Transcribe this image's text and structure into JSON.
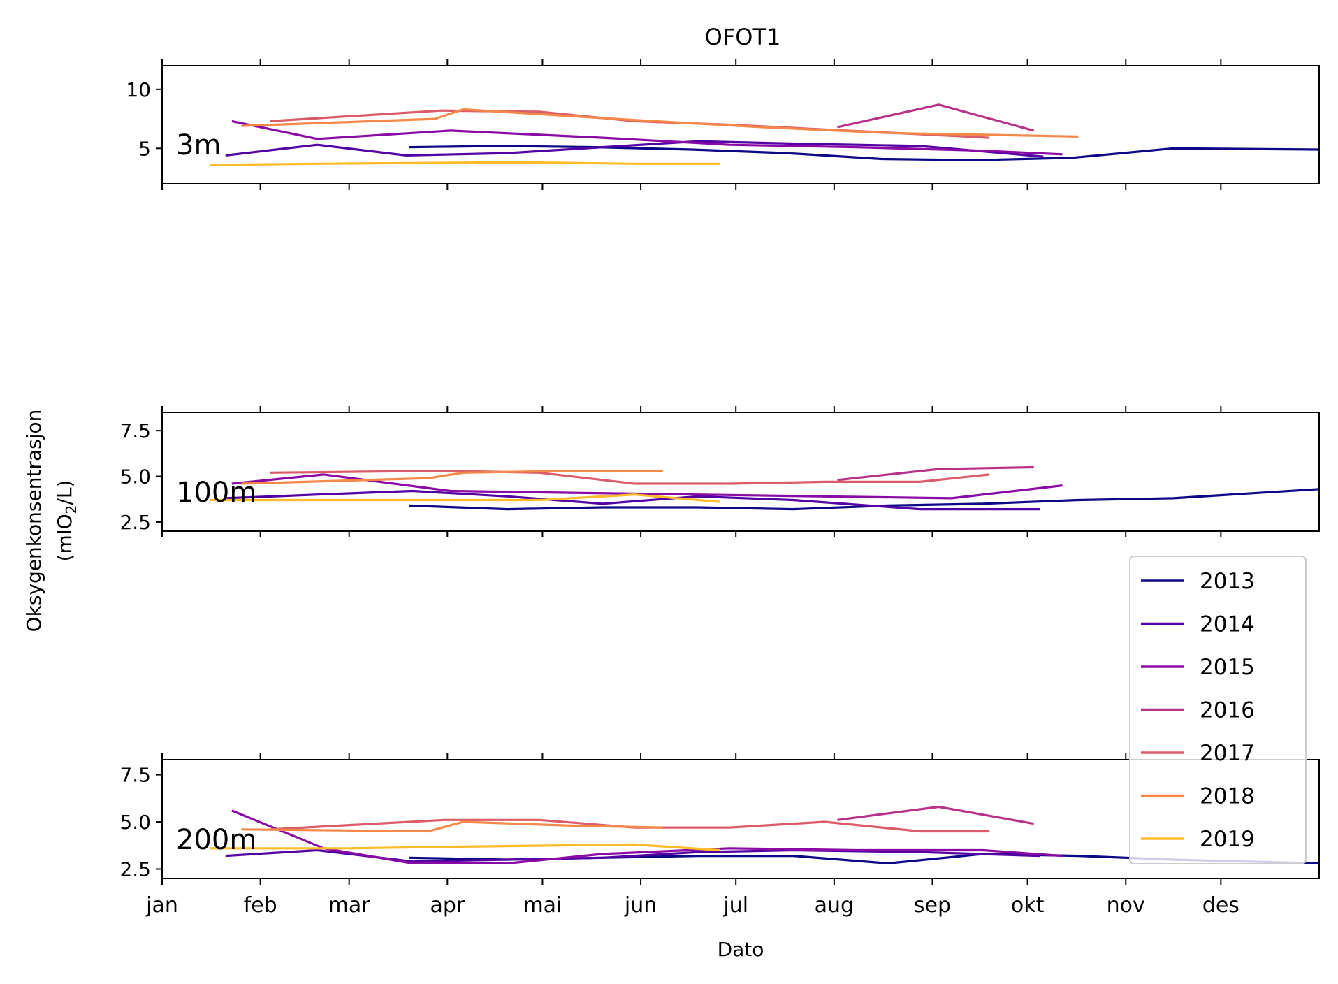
{
  "chart_data": {
    "type": "line",
    "title": "OFOT1",
    "xlabel": "Dato",
    "ylabel_line1": "Oksygenkonsentrasjon",
    "ylabel_line2_pre": "(mlO",
    "ylabel_line2_sub": "2",
    "ylabel_line2_post": "/L)",
    "x_ticklabels": [
      "jan",
      "feb",
      "mar",
      "apr",
      "mai",
      "jun",
      "jul",
      "aug",
      "sep",
      "okt",
      "nov",
      "des"
    ],
    "xlim": [
      1,
      366
    ],
    "colors": {
      "2013": "#0d0887",
      "2014": "#5302a3",
      "2015": "#8b0aa5",
      "2016": "#b83289",
      "2017": "#db5c68",
      "2018": "#f48849",
      "2019": "#febc2a"
    },
    "legend": {
      "placement": "right, below middle panel",
      "entries": [
        "2013",
        "2014",
        "2015",
        "2016",
        "2017",
        "2018",
        "2019"
      ]
    },
    "panels": [
      {
        "label": "3m",
        "ylim": [
          2,
          12
        ],
        "yticks": [
          5,
          10
        ],
        "ytick_labels": [
          "5",
          "10"
        ],
        "series": [
          {
            "name": "2013",
            "x": [
              79,
              108,
              138,
              168,
              198,
              228,
              258,
              288,
              320,
              366
            ],
            "y": [
              5.1,
              5.2,
              5.1,
              4.9,
              4.6,
              4.1,
              4.0,
              4.2,
              5.0,
              4.9
            ]
          },
          {
            "name": "2014",
            "x": [
              21,
              50,
              78,
              110,
              140,
              170,
              200,
              240,
              279
            ],
            "y": [
              4.4,
              5.3,
              4.4,
              4.6,
              5.1,
              5.6,
              5.4,
              5.2,
              4.3
            ]
          },
          {
            "name": "2015",
            "x": [
              23,
              50,
              92,
              140,
              180,
              220,
              260,
              285
            ],
            "y": [
              7.3,
              5.8,
              6.5,
              5.9,
              5.3,
              5.1,
              4.8,
              4.5
            ]
          },
          {
            "name": "2016",
            "x": [
              214,
              246,
              276
            ],
            "y": [
              6.8,
              8.7,
              6.5
            ]
          },
          {
            "name": "2017",
            "x": [
              35,
              89,
              120,
              150,
              180,
              210,
              240,
              262
            ],
            "y": [
              7.3,
              8.2,
              8.1,
              7.3,
              7.0,
              6.6,
              6.2,
              5.9
            ]
          },
          {
            "name": "2018",
            "x": [
              26,
              87,
              96,
              120,
              150,
              190,
              230,
              290
            ],
            "y": [
              6.9,
              7.5,
              8.3,
              7.9,
              7.4,
              6.8,
              6.3,
              6.0
            ]
          },
          {
            "name": "2019",
            "x": [
              16,
              50,
              100,
              120,
              150,
              177
            ],
            "y": [
              3.6,
              3.7,
              3.8,
              3.8,
              3.7,
              3.7
            ]
          }
        ]
      },
      {
        "label": "100m",
        "ylim": [
          2,
          8.5
        ],
        "yticks": [
          2.5,
          5.0,
          7.5
        ],
        "ytick_labels": [
          "2.5",
          "5.0",
          "7.5"
        ],
        "series": [
          {
            "name": "2013",
            "x": [
              79,
              110,
              140,
              170,
              200,
              230,
              260,
              290,
              320,
              366
            ],
            "y": [
              3.4,
              3.2,
              3.3,
              3.3,
              3.2,
              3.4,
              3.5,
              3.7,
              3.8,
              4.3
            ]
          },
          {
            "name": "2014",
            "x": [
              21,
              50,
              80,
              110,
              140,
              170,
              200,
              240,
              278
            ],
            "y": [
              3.8,
              4.0,
              4.2,
              3.9,
              3.5,
              3.9,
              3.7,
              3.2,
              3.2
            ]
          },
          {
            "name": "2015",
            "x": [
              23,
              52,
              92,
              130,
              170,
              210,
              250,
              285
            ],
            "y": [
              4.6,
              5.1,
              4.2,
              4.1,
              4.0,
              3.9,
              3.8,
              4.5
            ]
          },
          {
            "name": "2016",
            "x": [
              214,
              246,
              276
            ],
            "y": [
              4.8,
              5.4,
              5.5
            ]
          },
          {
            "name": "2017",
            "x": [
              35,
              90,
              120,
              150,
              180,
              210,
              240,
              262
            ],
            "y": [
              5.2,
              5.3,
              5.2,
              4.6,
              4.6,
              4.7,
              4.7,
              5.1
            ]
          },
          {
            "name": "2018",
            "x": [
              26,
              85,
              96,
              130,
              159
            ],
            "y": [
              4.6,
              4.9,
              5.2,
              5.3,
              5.3
            ]
          },
          {
            "name": "2019",
            "x": [
              16,
              60,
              100,
              120,
              150,
              177
            ],
            "y": [
              3.7,
              3.7,
              3.7,
              3.7,
              4.0,
              3.6
            ]
          }
        ]
      },
      {
        "label": "200m",
        "ylim": [
          2,
          8.3
        ],
        "yticks": [
          2.5,
          5.0,
          7.5
        ],
        "ytick_labels": [
          "2.5",
          "5.0",
          "7.5"
        ],
        "series": [
          {
            "name": "2013",
            "x": [
              79,
              110,
              140,
              170,
              200,
              230,
              260,
              290,
              320,
              366
            ],
            "y": [
              3.1,
              3.0,
              3.1,
              3.2,
              3.2,
              2.8,
              3.3,
              3.2,
              3.0,
              2.8
            ]
          },
          {
            "name": "2014",
            "x": [
              21,
              50,
              80,
              110,
              140,
              170,
              200,
              240,
              278
            ],
            "y": [
              3.2,
              3.5,
              2.9,
              3.0,
              3.1,
              3.4,
              3.5,
              3.4,
              3.2
            ]
          },
          {
            "name": "2015",
            "x": [
              23,
              52,
              80,
              110,
              140,
              180,
              220,
              260,
              285
            ],
            "y": [
              5.6,
              3.6,
              2.8,
              2.8,
              3.3,
              3.6,
              3.5,
              3.5,
              3.2
            ]
          },
          {
            "name": "2016",
            "x": [
              214,
              246,
              276
            ],
            "y": [
              5.1,
              5.8,
              4.9
            ]
          },
          {
            "name": "2017",
            "x": [
              35,
              90,
              120,
              150,
              180,
              210,
              240,
              262
            ],
            "y": [
              4.6,
              5.1,
              5.1,
              4.7,
              4.7,
              5.0,
              4.5,
              4.5
            ]
          },
          {
            "name": "2018",
            "x": [
              26,
              85,
              96,
              130,
              159
            ],
            "y": [
              4.6,
              4.5,
              5.0,
              4.8,
              4.7
            ]
          },
          {
            "name": "2019",
            "x": [
              16,
              60,
              100,
              150,
              177
            ],
            "y": [
              3.6,
              3.6,
              3.7,
              3.8,
              3.5
            ]
          }
        ]
      }
    ]
  }
}
